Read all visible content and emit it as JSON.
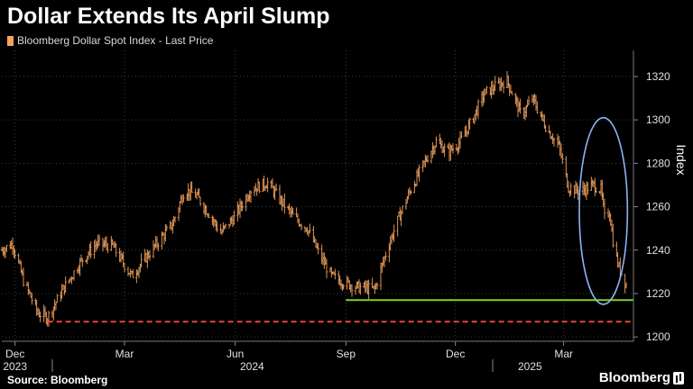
{
  "header": {
    "title": "Dollar Extends Its April Slump",
    "legend_label": "Bloomberg Dollar Spot Index - Last Price"
  },
  "footer": {
    "source": "Source: Bloomberg",
    "brand": "Bloomberg"
  },
  "colors": {
    "background": "#000000",
    "series": "#f4a460",
    "grid": "#3a3a3a",
    "axis_text": "#e0e0e0",
    "support_line": "#7ed321",
    "low_line": "#e8453c",
    "highlight_ellipse": "#8ab4f8"
  },
  "chart_data": {
    "type": "ohlc",
    "title": "Dollar Extends Its April Slump",
    "ylabel": "Index",
    "y_position": "right",
    "ylim": [
      1198,
      1332
    ],
    "yticks": [
      1200,
      1220,
      1240,
      1260,
      1280,
      1300,
      1320
    ],
    "x_range": [
      "2023-11-20",
      "2025-04-28"
    ],
    "month_ticks": [
      {
        "label": "Dec",
        "date": "2023-12-01"
      },
      {
        "label": "Mar",
        "date": "2024-03-01"
      },
      {
        "label": "Jun",
        "date": "2024-06-01"
      },
      {
        "label": "Sep",
        "date": "2024-09-01"
      },
      {
        "label": "Dec",
        "date": "2024-12-01"
      },
      {
        "label": "Mar",
        "date": "2025-03-01"
      }
    ],
    "year_ticks": [
      {
        "label": "2023",
        "date": "2023-12-01"
      },
      {
        "label": "2024",
        "date": "2024-06-15"
      },
      {
        "label": "2025",
        "date": "2025-02-01"
      }
    ],
    "year_separators": [
      "2024-01-01",
      "2025-01-01"
    ],
    "grid": true,
    "legend": "top-left",
    "series": [
      {
        "name": "Bloomberg Dollar Spot Index - Last Price",
        "anchors": [
          [
            "2023-11-20",
            1240
          ],
          [
            "2023-11-29",
            1243
          ],
          [
            "2023-12-08",
            1226
          ],
          [
            "2023-12-20",
            1211
          ],
          [
            "2023-12-28",
            1209
          ],
          [
            "2024-01-10",
            1222
          ],
          [
            "2024-01-25",
            1235
          ],
          [
            "2024-02-07",
            1243
          ],
          [
            "2024-02-20",
            1242
          ],
          [
            "2024-03-07",
            1228
          ],
          [
            "2024-03-25",
            1241
          ],
          [
            "2024-04-10",
            1252
          ],
          [
            "2024-04-20",
            1268
          ],
          [
            "2024-04-30",
            1265
          ],
          [
            "2024-05-10",
            1257
          ],
          [
            "2024-05-20",
            1248
          ],
          [
            "2024-05-31",
            1255
          ],
          [
            "2024-06-14",
            1268
          ],
          [
            "2024-06-28",
            1271
          ],
          [
            "2024-07-10",
            1262
          ],
          [
            "2024-07-20",
            1255
          ],
          [
            "2024-07-31",
            1250
          ],
          [
            "2024-08-10",
            1238
          ],
          [
            "2024-08-20",
            1228
          ],
          [
            "2024-08-31",
            1225
          ],
          [
            "2024-09-10",
            1223
          ],
          [
            "2024-09-25",
            1222
          ],
          [
            "2024-10-05",
            1240
          ],
          [
            "2024-10-15",
            1255
          ],
          [
            "2024-10-25",
            1268
          ],
          [
            "2024-11-05",
            1280
          ],
          [
            "2024-11-15",
            1290
          ],
          [
            "2024-11-25",
            1285
          ],
          [
            "2024-12-05",
            1290
          ],
          [
            "2024-12-15",
            1300
          ],
          [
            "2024-12-25",
            1312
          ],
          [
            "2025-01-05",
            1316
          ],
          [
            "2025-01-13",
            1318
          ],
          [
            "2025-01-25",
            1302
          ],
          [
            "2025-02-03",
            1310
          ],
          [
            "2025-02-15",
            1296
          ],
          [
            "2025-02-25",
            1288
          ],
          [
            "2025-03-05",
            1269
          ],
          [
            "2025-03-15",
            1267
          ],
          [
            "2025-03-25",
            1270
          ],
          [
            "2025-04-01",
            1268
          ],
          [
            "2025-04-04",
            1255
          ],
          [
            "2025-04-08",
            1258
          ],
          [
            "2025-04-12",
            1240
          ],
          [
            "2025-04-16",
            1232
          ],
          [
            "2025-04-22",
            1224
          ]
        ]
      }
    ],
    "annotations": [
      {
        "type": "hline",
        "style": "solid",
        "color": "#7ed321",
        "y": 1217,
        "x_from": "2024-09-01",
        "x_to": "2025-04-30"
      },
      {
        "type": "hline",
        "style": "dashed",
        "color": "#e8453c",
        "y": 1207,
        "x_from": "2023-12-28",
        "x_to": "2025-04-30"
      },
      {
        "type": "ellipse",
        "color": "#8ab4f8",
        "center": [
          "2025-04-03",
          1258
        ],
        "half_width_days": 20,
        "half_height": 43
      }
    ]
  }
}
